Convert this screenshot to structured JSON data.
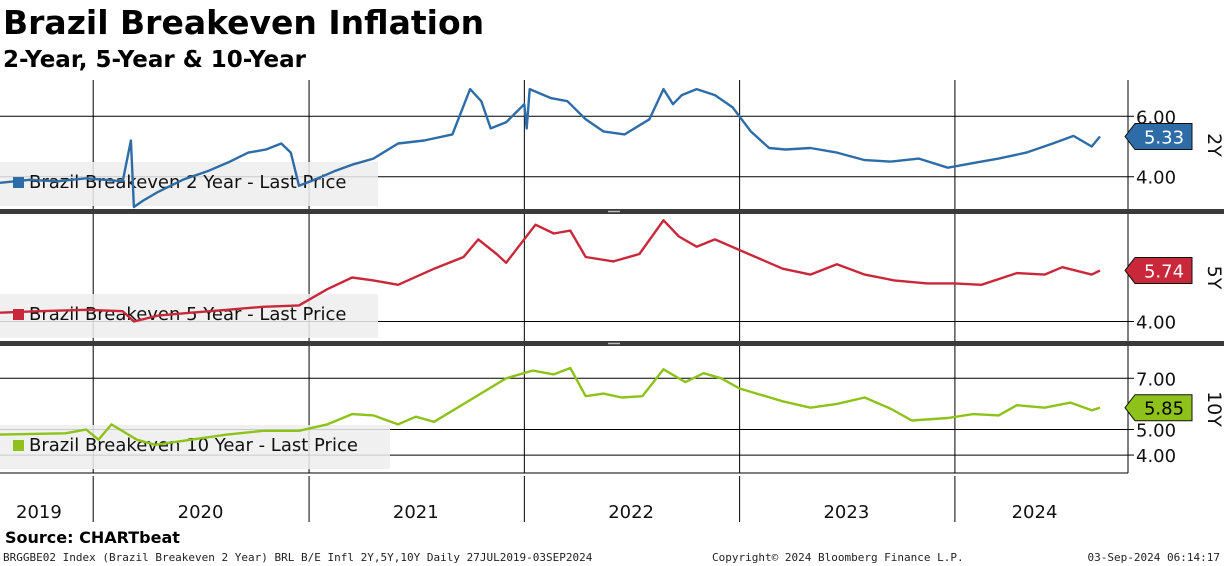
{
  "title": "Brazil Breakeven Inflation",
  "subtitle": "2-Year, 5-Year & 10-Year",
  "source": "Source: CHARTbeat",
  "footer": {
    "index_info": "BRGGBE02 Index (Brazil Breakeven 2 Year) BRL B/E Infl 2Y,5Y,10Y  Daily 27JUL2019-03SEP2024",
    "copyright": "Copyright© 2024 Bloomberg Finance L.P.",
    "timestamp": "03-Sep-2024 06:14:17"
  },
  "chart_data": {
    "type": "line",
    "x_axis_labels": [
      "2019",
      "2020",
      "2021",
      "2022",
      "2023",
      "2024"
    ],
    "x_range": [
      "2019-07-27",
      "2024-09-03"
    ],
    "panels": [
      {
        "id": "2y",
        "legend": "Brazil Breakeven 2 Year - Last Price",
        "axis_label": "2Y",
        "color": "#2e6ca8",
        "last_value": "5.33",
        "ylim": [
          2.9,
          7.2
        ],
        "y_ticks": [
          "4.00",
          "6.00"
        ],
        "points": [
          [
            "2019-07-27",
            3.8
          ],
          [
            "2019-09-15",
            3.9
          ],
          [
            "2019-11-01",
            3.85
          ],
          [
            "2019-12-20",
            3.95
          ],
          [
            "2020-01-20",
            3.9
          ],
          [
            "2020-02-20",
            3.85
          ],
          [
            "2020-03-05",
            5.2
          ],
          [
            "2020-03-10",
            3.0
          ],
          [
            "2020-03-25",
            3.2
          ],
          [
            "2020-04-20",
            3.5
          ],
          [
            "2020-06-01",
            3.9
          ],
          [
            "2020-07-15",
            4.2
          ],
          [
            "2020-08-20",
            4.5
          ],
          [
            "2020-09-20",
            4.8
          ],
          [
            "2020-10-20",
            4.9
          ],
          [
            "2020-11-15",
            5.1
          ],
          [
            "2020-12-01",
            4.8
          ],
          [
            "2020-12-15",
            3.7
          ],
          [
            "2021-01-10",
            3.9
          ],
          [
            "2021-02-15",
            4.2
          ],
          [
            "2021-03-15",
            4.4
          ],
          [
            "2021-04-20",
            4.6
          ],
          [
            "2021-06-01",
            5.1
          ],
          [
            "2021-07-15",
            5.2
          ],
          [
            "2021-09-01",
            5.4
          ],
          [
            "2021-10-01",
            6.9
          ],
          [
            "2021-10-20",
            6.5
          ],
          [
            "2021-11-05",
            5.6
          ],
          [
            "2021-12-01",
            5.8
          ],
          [
            "2022-01-01",
            6.4
          ],
          [
            "2022-01-05",
            5.6
          ],
          [
            "2022-01-10",
            6.9
          ],
          [
            "2022-02-15",
            6.6
          ],
          [
            "2022-03-15",
            6.5
          ],
          [
            "2022-04-15",
            5.9
          ],
          [
            "2022-05-15",
            5.5
          ],
          [
            "2022-06-20",
            5.4
          ],
          [
            "2022-08-01",
            5.9
          ],
          [
            "2022-08-25",
            6.9
          ],
          [
            "2022-09-10",
            6.4
          ],
          [
            "2022-09-25",
            6.7
          ],
          [
            "2022-10-20",
            6.9
          ],
          [
            "2022-11-20",
            6.7
          ],
          [
            "2022-12-20",
            6.3
          ],
          [
            "2023-01-20",
            5.5
          ],
          [
            "2023-02-20",
            4.95
          ],
          [
            "2023-03-20",
            4.9
          ],
          [
            "2023-05-01",
            4.95
          ],
          [
            "2023-06-15",
            4.8
          ],
          [
            "2023-08-01",
            4.55
          ],
          [
            "2023-09-15",
            4.5
          ],
          [
            "2023-11-01",
            4.6
          ],
          [
            "2023-12-20",
            4.3
          ],
          [
            "2024-02-01",
            4.45
          ],
          [
            "2024-03-15",
            4.6
          ],
          [
            "2024-05-01",
            4.8
          ],
          [
            "2024-06-15",
            5.1
          ],
          [
            "2024-07-20",
            5.35
          ],
          [
            "2024-08-20",
            5.0
          ],
          [
            "2024-09-03",
            5.33
          ]
        ]
      },
      {
        "id": "5y",
        "legend": "Brazil Breakeven 5 Year - Last Price",
        "axis_label": "5Y",
        "color": "#c8283a",
        "last_value": "5.74",
        "ylim": [
          3.3,
          7.7
        ],
        "y_ticks": [
          "4.00"
        ],
        "points": [
          [
            "2019-07-27",
            4.3
          ],
          [
            "2019-10-01",
            4.35
          ],
          [
            "2019-12-20",
            4.4
          ],
          [
            "2020-02-20",
            4.35
          ],
          [
            "2020-03-10",
            4.0
          ],
          [
            "2020-04-20",
            4.2
          ],
          [
            "2020-06-15",
            4.3
          ],
          [
            "2020-08-15",
            4.4
          ],
          [
            "2020-10-15",
            4.5
          ],
          [
            "2020-12-15",
            4.55
          ],
          [
            "2021-02-01",
            5.1
          ],
          [
            "2021-03-15",
            5.5
          ],
          [
            "2021-04-20",
            5.4
          ],
          [
            "2021-06-01",
            5.25
          ],
          [
            "2021-08-01",
            5.8
          ],
          [
            "2021-09-20",
            6.2
          ],
          [
            "2021-10-15",
            6.8
          ],
          [
            "2021-11-15",
            6.3
          ],
          [
            "2021-12-01",
            6.0
          ],
          [
            "2022-01-20",
            7.3
          ],
          [
            "2022-02-20",
            7.0
          ],
          [
            "2022-03-20",
            7.1
          ],
          [
            "2022-04-15",
            6.2
          ],
          [
            "2022-06-01",
            6.05
          ],
          [
            "2022-07-15",
            6.3
          ],
          [
            "2022-08-25",
            7.45
          ],
          [
            "2022-09-20",
            6.9
          ],
          [
            "2022-10-20",
            6.55
          ],
          [
            "2022-11-20",
            6.8
          ],
          [
            "2023-03-15",
            5.8
          ],
          [
            "2023-05-01",
            5.6
          ],
          [
            "2023-06-15",
            5.95
          ],
          [
            "2023-08-01",
            5.6
          ],
          [
            "2023-09-20",
            5.4
          ],
          [
            "2023-11-15",
            5.3
          ],
          [
            "2024-01-01",
            5.3
          ],
          [
            "2024-02-15",
            5.25
          ],
          [
            "2024-04-15",
            5.65
          ],
          [
            "2024-06-01",
            5.6
          ],
          [
            "2024-07-01",
            5.85
          ],
          [
            "2024-08-20",
            5.6
          ],
          [
            "2024-09-03",
            5.74
          ]
        ]
      },
      {
        "id": "10y",
        "legend": "Brazil Breakeven 10 Year - Last Price",
        "axis_label": "10Y",
        "color": "#8ec21a",
        "last_value": "5.85",
        "ylim": [
          3.3,
          8.3
        ],
        "y_ticks": [
          "4.00",
          "5.00",
          "7.00"
        ],
        "points": [
          [
            "2019-07-27",
            4.8
          ],
          [
            "2019-11-15",
            4.85
          ],
          [
            "2019-12-20",
            5.0
          ],
          [
            "2020-01-10",
            4.6
          ],
          [
            "2020-02-01",
            5.2
          ],
          [
            "2020-03-15",
            4.6
          ],
          [
            "2020-04-15",
            4.4
          ],
          [
            "2020-06-15",
            4.6
          ],
          [
            "2020-08-15",
            4.8
          ],
          [
            "2020-10-15",
            4.95
          ],
          [
            "2020-12-15",
            4.95
          ],
          [
            "2021-02-01",
            5.2
          ],
          [
            "2021-03-15",
            5.6
          ],
          [
            "2021-04-20",
            5.55
          ],
          [
            "2021-06-01",
            5.2
          ],
          [
            "2021-07-01",
            5.5
          ],
          [
            "2021-08-01",
            5.3
          ],
          [
            "2021-12-01",
            7.0
          ],
          [
            "2022-01-15",
            7.3
          ],
          [
            "2022-02-20",
            7.15
          ],
          [
            "2022-03-20",
            7.4
          ],
          [
            "2022-04-15",
            6.3
          ],
          [
            "2022-05-15",
            6.4
          ],
          [
            "2022-06-15",
            6.25
          ],
          [
            "2022-07-20",
            6.3
          ],
          [
            "2022-08-25",
            7.35
          ],
          [
            "2022-10-01",
            6.85
          ],
          [
            "2022-11-01",
            7.2
          ],
          [
            "2022-12-01",
            7.0
          ],
          [
            "2023-01-01",
            6.6
          ],
          [
            "2023-03-15",
            6.1
          ],
          [
            "2023-05-01",
            5.85
          ],
          [
            "2023-06-15",
            6.0
          ],
          [
            "2023-08-01",
            6.25
          ],
          [
            "2023-09-15",
            5.8
          ],
          [
            "2023-10-20",
            5.35
          ],
          [
            "2023-12-20",
            5.45
          ],
          [
            "2024-02-01",
            5.6
          ],
          [
            "2024-03-15",
            5.55
          ],
          [
            "2024-04-15",
            5.95
          ],
          [
            "2024-06-01",
            5.85
          ],
          [
            "2024-07-15",
            6.05
          ],
          [
            "2024-08-20",
            5.75
          ],
          [
            "2024-09-03",
            5.85
          ]
        ]
      }
    ]
  }
}
